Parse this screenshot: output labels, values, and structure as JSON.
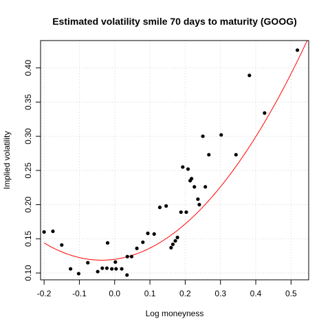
{
  "chart_data": {
    "type": "scatter",
    "title": "Estimated volatility smile 70 days to maturity (GOOG)",
    "xlabel": "Log moneyness",
    "ylabel": "Implied volatility",
    "xlim": [
      -0.21,
      0.55
    ],
    "ylim": [
      0.09,
      0.44
    ],
    "x_ticks": [
      -0.2,
      -0.1,
      0.0,
      0.1,
      0.2,
      0.3,
      0.4,
      0.5
    ],
    "x_tick_labels": [
      "-0.2",
      "-0.1",
      "0.0",
      "0.1",
      "0.2",
      "0.3",
      "0.4",
      "0.5"
    ],
    "y_ticks": [
      0.1,
      0.15,
      0.2,
      0.25,
      0.3,
      0.35,
      0.4
    ],
    "y_tick_labels": [
      "0.10",
      "0.15",
      "0.20",
      "0.25",
      "0.30",
      "0.35",
      "0.40"
    ],
    "grid": true,
    "points": {
      "x": [
        -0.2,
        -0.175,
        -0.15,
        -0.125,
        -0.102,
        -0.076,
        -0.048,
        -0.035,
        -0.02,
        -0.022,
        -0.008,
        0.002,
        0.004,
        0.02,
        0.035,
        0.036,
        0.048,
        0.063,
        0.08,
        0.094,
        0.112,
        0.128,
        0.146,
        0.16,
        0.165,
        0.172,
        0.178,
        0.188,
        0.193,
        0.203,
        0.208,
        0.214,
        0.218,
        0.226,
        0.236,
        0.24,
        0.25,
        0.257,
        0.267,
        0.302,
        0.344,
        0.382,
        0.425,
        0.518
      ],
      "y": [
        0.16,
        0.161,
        0.141,
        0.106,
        0.099,
        0.115,
        0.102,
        0.107,
        0.144,
        0.107,
        0.106,
        0.116,
        0.106,
        0.106,
        0.097,
        0.124,
        0.124,
        0.136,
        0.145,
        0.158,
        0.157,
        0.196,
        0.198,
        0.137,
        0.142,
        0.147,
        0.152,
        0.189,
        0.255,
        0.189,
        0.252,
        0.235,
        0.238,
        0.226,
        0.208,
        0.2,
        0.3,
        0.226,
        0.273,
        0.302,
        0.273,
        0.389,
        0.334,
        0.426
      ],
      "color": "#000000"
    },
    "fit": {
      "type": "quadratic",
      "coefficients": [
        0.12,
        0.0695,
        0.947
      ],
      "color": "#ff0000"
    }
  }
}
